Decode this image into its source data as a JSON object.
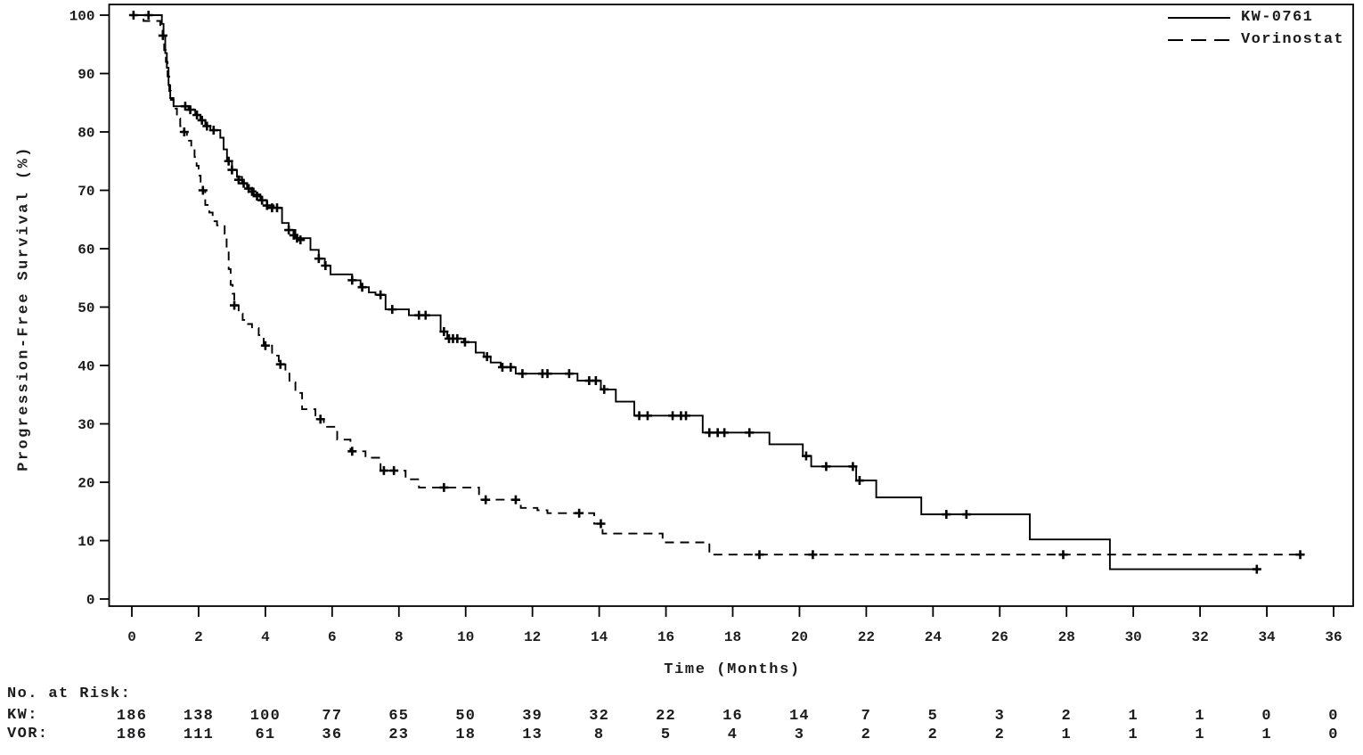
{
  "chart_data": {
    "type": "line",
    "subtype": "kaplan-meier-step",
    "title": "",
    "xlabel": "Time (Months)",
    "ylabel": "Progression-Free Survival (%)",
    "xlim": [
      0,
      36
    ],
    "ylim": [
      0,
      100
    ],
    "x_ticks": [
      0,
      2,
      4,
      6,
      8,
      10,
      12,
      14,
      16,
      18,
      20,
      22,
      24,
      26,
      28,
      30,
      32,
      34,
      36
    ],
    "y_ticks": [
      0,
      10,
      20,
      30,
      40,
      50,
      60,
      70,
      80,
      90,
      100
    ],
    "grid": false,
    "legend_position": "top-right",
    "line_color": "#000000",
    "series": [
      {
        "name": "KW-0761",
        "style": "solid",
        "steps": [
          [
            0,
            100
          ],
          [
            0.85,
            100
          ],
          [
            0.9,
            98.5
          ],
          [
            0.95,
            96.5
          ],
          [
            1.0,
            93.5
          ],
          [
            1.05,
            91
          ],
          [
            1.1,
            88
          ],
          [
            1.15,
            85.8
          ],
          [
            1.25,
            84.4
          ],
          [
            1.7,
            83.8
          ],
          [
            1.9,
            82.9
          ],
          [
            2.05,
            82
          ],
          [
            2.2,
            81
          ],
          [
            2.35,
            80.3
          ],
          [
            2.65,
            79
          ],
          [
            2.75,
            77
          ],
          [
            2.85,
            75
          ],
          [
            3.0,
            73.5
          ],
          [
            3.15,
            72.3
          ],
          [
            3.3,
            71.2
          ],
          [
            3.45,
            70.3
          ],
          [
            3.65,
            69.3
          ],
          [
            3.85,
            68.3
          ],
          [
            4.05,
            67.4
          ],
          [
            4.25,
            67
          ],
          [
            4.5,
            64.4
          ],
          [
            4.7,
            63.2
          ],
          [
            4.9,
            61.8
          ],
          [
            5.35,
            59.8
          ],
          [
            5.6,
            58.3
          ],
          [
            5.78,
            57.1
          ],
          [
            5.95,
            55.6
          ],
          [
            6.6,
            54.6
          ],
          [
            6.85,
            53.4
          ],
          [
            7.1,
            52.5
          ],
          [
            7.3,
            52.1
          ],
          [
            7.6,
            49.6
          ],
          [
            8.3,
            48.6
          ],
          [
            9.25,
            45.8
          ],
          [
            9.45,
            44.6
          ],
          [
            9.95,
            44.0
          ],
          [
            10.3,
            42.2
          ],
          [
            10.55,
            41.5
          ],
          [
            10.75,
            40.5
          ],
          [
            11.05,
            39.7
          ],
          [
            11.5,
            38.6
          ],
          [
            13.35,
            37.4
          ],
          [
            14.05,
            35.9
          ],
          [
            14.5,
            33.8
          ],
          [
            15.05,
            31.4
          ],
          [
            17.1,
            28.5
          ],
          [
            19.1,
            26.5
          ],
          [
            20.1,
            24.5
          ],
          [
            20.35,
            22.7
          ],
          [
            21.7,
            20.3
          ],
          [
            22.3,
            17.4
          ],
          [
            23.65,
            14.5
          ],
          [
            26.9,
            10.2
          ],
          [
            29.3,
            5.1
          ],
          [
            33.7,
            5.1
          ]
        ],
        "censors": [
          [
            0.05,
            100
          ],
          [
            0.5,
            100
          ],
          [
            0.93,
            96.5
          ],
          [
            1.6,
            84.4
          ],
          [
            1.75,
            83.8
          ],
          [
            1.95,
            82.9
          ],
          [
            2.1,
            82
          ],
          [
            2.25,
            81
          ],
          [
            2.45,
            80.3
          ],
          [
            2.9,
            75
          ],
          [
            3.0,
            73.5
          ],
          [
            3.2,
            71.8
          ],
          [
            3.35,
            71.2
          ],
          [
            3.5,
            70.3
          ],
          [
            3.6,
            69.8
          ],
          [
            3.75,
            69
          ],
          [
            3.9,
            68.3
          ],
          [
            4.05,
            67.4
          ],
          [
            4.2,
            67
          ],
          [
            4.35,
            67
          ],
          [
            4.7,
            63.2
          ],
          [
            4.85,
            62.3
          ],
          [
            4.95,
            61.8
          ],
          [
            5.05,
            61.5
          ],
          [
            5.6,
            58.3
          ],
          [
            5.8,
            57.1
          ],
          [
            6.6,
            54.6
          ],
          [
            6.9,
            53.4
          ],
          [
            7.45,
            52.1
          ],
          [
            7.8,
            49.6
          ],
          [
            8.6,
            48.6
          ],
          [
            8.8,
            48.6
          ],
          [
            9.35,
            45.8
          ],
          [
            9.5,
            44.6
          ],
          [
            9.62,
            44.6
          ],
          [
            9.75,
            44.6
          ],
          [
            9.98,
            44.0
          ],
          [
            10.64,
            41.5
          ],
          [
            11.1,
            39.7
          ],
          [
            11.35,
            39.7
          ],
          [
            11.7,
            38.6
          ],
          [
            12.3,
            38.6
          ],
          [
            12.45,
            38.6
          ],
          [
            13.1,
            38.6
          ],
          [
            13.7,
            37.4
          ],
          [
            13.9,
            37.4
          ],
          [
            14.15,
            35.9
          ],
          [
            15.2,
            31.4
          ],
          [
            15.45,
            31.4
          ],
          [
            16.2,
            31.4
          ],
          [
            16.45,
            31.4
          ],
          [
            16.6,
            31.4
          ],
          [
            17.3,
            28.5
          ],
          [
            17.55,
            28.5
          ],
          [
            17.75,
            28.5
          ],
          [
            18.5,
            28.5
          ],
          [
            20.2,
            24.5
          ],
          [
            20.8,
            22.7
          ],
          [
            21.6,
            22.7
          ],
          [
            21.8,
            20.3
          ],
          [
            24.4,
            14.5
          ],
          [
            25.0,
            14.5
          ],
          [
            33.7,
            5.1
          ]
        ]
      },
      {
        "name": "Vorinostat",
        "style": "dashed",
        "steps": [
          [
            0,
            100
          ],
          [
            0.35,
            99
          ],
          [
            0.85,
            97.5
          ],
          [
            0.92,
            96
          ],
          [
            0.97,
            94
          ],
          [
            1.02,
            92
          ],
          [
            1.07,
            89.5
          ],
          [
            1.12,
            87
          ],
          [
            1.17,
            85.5
          ],
          [
            1.25,
            84
          ],
          [
            1.35,
            82.3
          ],
          [
            1.45,
            81
          ],
          [
            1.55,
            80
          ],
          [
            1.65,
            78.5
          ],
          [
            1.78,
            77.3
          ],
          [
            1.88,
            75.7
          ],
          [
            1.94,
            74.2
          ],
          [
            2.0,
            72.5
          ],
          [
            2.06,
            71
          ],
          [
            2.12,
            70
          ],
          [
            2.2,
            67.5
          ],
          [
            2.32,
            66.2
          ],
          [
            2.42,
            64.7
          ],
          [
            2.55,
            64
          ],
          [
            2.78,
            62.6
          ],
          [
            2.84,
            59.8
          ],
          [
            2.9,
            56.5
          ],
          [
            2.96,
            53.8
          ],
          [
            3.02,
            52.3
          ],
          [
            3.07,
            50.3
          ],
          [
            3.2,
            48.9
          ],
          [
            3.32,
            47.8
          ],
          [
            3.45,
            47.1
          ],
          [
            3.6,
            46.4
          ],
          [
            3.8,
            45.2
          ],
          [
            3.95,
            43.4
          ],
          [
            4.2,
            41.7
          ],
          [
            4.4,
            40.2
          ],
          [
            4.6,
            38.9
          ],
          [
            4.72,
            37.1
          ],
          [
            4.9,
            35.3
          ],
          [
            5.1,
            32.5
          ],
          [
            5.5,
            30.8
          ],
          [
            5.75,
            29.5
          ],
          [
            6.15,
            27.3
          ],
          [
            6.55,
            25.3
          ],
          [
            7.0,
            24.2
          ],
          [
            7.45,
            22.0
          ],
          [
            8.2,
            20.5
          ],
          [
            8.6,
            19.1
          ],
          [
            10.4,
            17.0
          ],
          [
            11.65,
            15.6
          ],
          [
            12.15,
            15.2
          ],
          [
            12.45,
            14.7
          ],
          [
            13.85,
            12.9
          ],
          [
            14.1,
            11.2
          ],
          [
            15.9,
            9.7
          ],
          [
            17.3,
            7.6
          ],
          [
            35.0,
            7.6
          ]
        ],
        "censors": [
          [
            1.57,
            80
          ],
          [
            2.13,
            70
          ],
          [
            3.07,
            50.3
          ],
          [
            4.0,
            43.4
          ],
          [
            4.45,
            40.2
          ],
          [
            5.65,
            30.8
          ],
          [
            6.6,
            25.3
          ],
          [
            7.55,
            22.0
          ],
          [
            7.85,
            22.0
          ],
          [
            9.35,
            19.1
          ],
          [
            10.6,
            17.0
          ],
          [
            11.5,
            17.0
          ],
          [
            13.4,
            14.7
          ],
          [
            14.05,
            12.9
          ],
          [
            18.8,
            7.6
          ],
          [
            20.4,
            7.6
          ],
          [
            27.9,
            7.6
          ],
          [
            35.0,
            7.6
          ]
        ]
      }
    ]
  },
  "legend": {
    "entries": [
      {
        "label": "KW-0761",
        "line_style": "solid"
      },
      {
        "label": "Vorinostat",
        "line_style": "dashed"
      }
    ]
  },
  "risk_table": {
    "title": "No. at Risk:",
    "time_points": [
      0,
      2,
      4,
      6,
      8,
      10,
      12,
      14,
      16,
      18,
      20,
      22,
      24,
      26,
      28,
      30,
      32,
      34,
      36
    ],
    "rows": [
      {
        "label": "KW:",
        "values": [
          186,
          138,
          100,
          77,
          65,
          50,
          39,
          32,
          22,
          16,
          14,
          7,
          5,
          3,
          2,
          1,
          1,
          0,
          0
        ]
      },
      {
        "label": "VOR:",
        "values": [
          186,
          111,
          61,
          36,
          23,
          18,
          13,
          8,
          5,
          4,
          3,
          2,
          2,
          2,
          1,
          1,
          1,
          1,
          0
        ]
      }
    ]
  },
  "colors": {
    "background": "#ffffff",
    "stroke": "#000000",
    "text": "#1c1c1e"
  }
}
